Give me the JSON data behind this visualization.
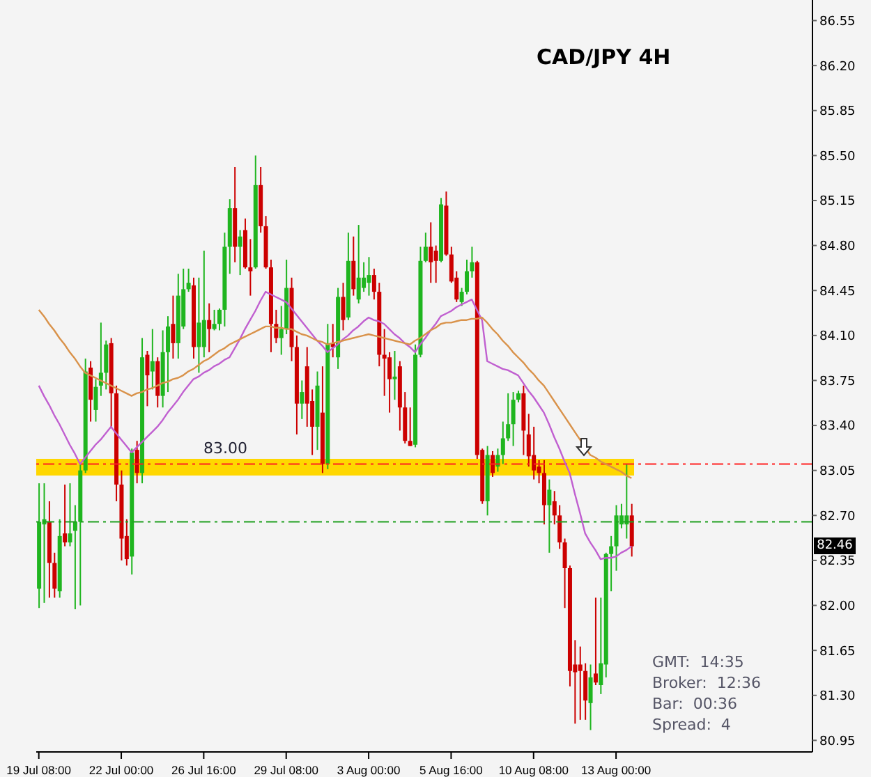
{
  "chart_data": {
    "type": "candlestick",
    "title": "CAD/JPY 4H",
    "categories": [
      "19 Jul 08:00",
      null,
      null,
      null,
      null,
      null,
      null,
      null,
      null,
      null,
      null,
      null,
      null,
      null,
      null,
      null,
      "22 Jul 00:00",
      null,
      null,
      null,
      null,
      null,
      null,
      null,
      null,
      null,
      null,
      null,
      null,
      null,
      null,
      null,
      "26 Jul 16:00",
      null,
      null,
      null,
      null,
      null,
      null,
      null,
      null,
      null,
      null,
      null,
      null,
      null,
      null,
      null,
      "29 Jul 08:00",
      null,
      null,
      null,
      null,
      null,
      null,
      null,
      null,
      null,
      null,
      null,
      null,
      null,
      null,
      null,
      "3 Aug 00:00",
      null,
      null,
      null,
      null,
      null,
      null,
      null,
      null,
      null,
      null,
      null,
      null,
      null,
      null,
      null,
      "5 Aug 16:00",
      null,
      null,
      null,
      null,
      null,
      null,
      null,
      null,
      null,
      null,
      null,
      null,
      null,
      null,
      null,
      "10 Aug 08:00",
      null,
      null,
      null,
      null,
      null,
      null,
      null,
      null,
      null,
      null,
      null,
      null,
      null,
      null,
      null,
      "13 Aug 00:00",
      null,
      null,
      null
    ],
    "ohlc": [
      [
        82.13,
        82.95,
        81.98,
        82.65
      ],
      [
        82.63,
        82.95,
        82.02,
        82.67
      ],
      [
        82.65,
        82.81,
        82.06,
        82.33
      ],
      [
        82.33,
        82.41,
        82.06,
        82.13
      ],
      [
        82.11,
        82.67,
        82.06,
        82.54
      ],
      [
        82.56,
        82.94,
        82.46,
        82.49
      ],
      [
        82.49,
        82.95,
        82.46,
        82.56
      ],
      [
        82.58,
        82.78,
        81.97,
        82.65
      ],
      [
        82.65,
        83.1,
        82.0,
        83.05
      ],
      [
        83.05,
        83.92,
        83.03,
        83.82
      ],
      [
        83.85,
        83.9,
        83.43,
        83.6
      ],
      [
        83.52,
        83.76,
        83.43,
        83.7
      ],
      [
        83.71,
        84.2,
        83.63,
        83.81
      ],
      [
        83.81,
        84.06,
        83.68,
        84.03
      ],
      [
        84.04,
        84.08,
        83.39,
        83.65
      ],
      [
        83.65,
        83.71,
        82.81,
        82.94
      ],
      [
        82.94,
        83.05,
        82.35,
        82.52
      ],
      [
        82.54,
        82.67,
        82.31,
        82.36
      ],
      [
        82.38,
        83.22,
        82.24,
        83.19
      ],
      [
        83.21,
        83.28,
        82.95,
        83.03
      ],
      [
        83.03,
        84.08,
        82.95,
        83.93
      ],
      [
        83.95,
        83.98,
        83.55,
        83.79
      ],
      [
        83.82,
        84.15,
        83.68,
        83.9
      ],
      [
        83.9,
        83.93,
        83.54,
        83.63
      ],
      [
        83.63,
        84.14,
        83.54,
        83.97
      ],
      [
        83.97,
        84.25,
        83.66,
        84.17
      ],
      [
        84.19,
        84.41,
        83.92,
        84.04
      ],
      [
        84.04,
        84.58,
        83.92,
        84.41
      ],
      [
        84.17,
        84.62,
        84.15,
        84.46
      ],
      [
        84.46,
        84.62,
        84.44,
        84.51
      ],
      [
        84.49,
        84.55,
        83.92,
        84.01
      ],
      [
        84.01,
        84.55,
        83.81,
        84.2
      ],
      [
        84.01,
        84.76,
        83.93,
        84.22
      ],
      [
        84.22,
        84.35,
        83.97,
        84.15
      ],
      [
        84.15,
        84.3,
        84.14,
        84.19
      ],
      [
        84.19,
        84.31,
        84.14,
        84.3
      ],
      [
        84.3,
        84.9,
        84.17,
        84.79
      ],
      [
        84.79,
        85.16,
        84.58,
        85.09
      ],
      [
        85.09,
        85.41,
        84.67,
        84.79
      ],
      [
        84.79,
        84.92,
        84.57,
        84.87
      ],
      [
        84.92,
        85.01,
        84.62,
        84.63
      ],
      [
        84.63,
        84.85,
        84.41,
        84.6
      ],
      [
        84.63,
        85.5,
        84.62,
        85.27
      ],
      [
        85.27,
        85.41,
        84.9,
        84.95
      ],
      [
        84.95,
        85.03,
        84.62,
        84.63
      ],
      [
        84.63,
        84.69,
        83.97,
        84.19
      ],
      [
        84.19,
        84.3,
        84.04,
        84.08
      ],
      [
        84.08,
        84.33,
        83.95,
        84.15
      ],
      [
        84.15,
        84.69,
        84.11,
        84.47
      ],
      [
        84.47,
        84.55,
        83.9,
        84.01
      ],
      [
        84.01,
        84.1,
        83.33,
        83.57
      ],
      [
        83.57,
        83.75,
        83.45,
        83.66
      ],
      [
        83.86,
        84.01,
        83.39,
        83.57
      ],
      [
        83.59,
        83.68,
        83.17,
        83.39
      ],
      [
        83.39,
        83.82,
        83.21,
        83.71
      ],
      [
        83.5,
        83.86,
        83.03,
        83.1
      ],
      [
        83.1,
        84.19,
        83.06,
        84.04
      ],
      [
        84.04,
        84.19,
        83.93,
        84.01
      ],
      [
        83.93,
        84.47,
        83.84,
        84.4
      ],
      [
        84.4,
        84.51,
        84.14,
        84.22
      ],
      [
        84.24,
        84.9,
        84.22,
        84.68
      ],
      [
        84.68,
        84.87,
        84.41,
        84.46
      ],
      [
        84.38,
        84.96,
        84.35,
        84.55
      ],
      [
        84.47,
        84.67,
        84.44,
        84.55
      ],
      [
        84.51,
        84.71,
        84.41,
        84.57
      ],
      [
        84.57,
        84.62,
        84.38,
        84.44
      ],
      [
        84.44,
        84.51,
        83.86,
        83.95
      ],
      [
        83.95,
        84.15,
        83.63,
        83.92
      ],
      [
        83.93,
        83.97,
        83.5,
        83.76
      ],
      [
        83.76,
        83.98,
        83.6,
        83.78
      ],
      [
        83.86,
        83.9,
        83.36,
        83.54
      ],
      [
        83.54,
        83.66,
        83.26,
        83.28
      ],
      [
        83.28,
        83.54,
        83.24,
        83.24
      ],
      [
        83.25,
        84.03,
        83.23,
        83.95
      ],
      [
        83.95,
        84.79,
        83.93,
        84.68
      ],
      [
        84.68,
        84.9,
        84.67,
        84.79
      ],
      [
        84.79,
        84.98,
        84.51,
        84.67
      ],
      [
        84.76,
        84.8,
        84.51,
        84.68
      ],
      [
        84.68,
        85.17,
        84.67,
        85.12
      ],
      [
        85.11,
        85.22,
        84.72,
        84.73
      ],
      [
        84.73,
        84.79,
        84.51,
        84.52
      ],
      [
        84.55,
        84.6,
        84.36,
        84.38
      ],
      [
        84.36,
        84.47,
        84.33,
        84.44
      ],
      [
        84.44,
        84.69,
        84.42,
        84.6
      ],
      [
        84.6,
        84.79,
        84.55,
        84.67
      ],
      [
        84.67,
        84.68,
        83.14,
        83.17
      ],
      [
        83.21,
        83.22,
        82.79,
        82.81
      ],
      [
        82.81,
        83.24,
        82.7,
        83.17
      ],
      [
        83.17,
        83.2,
        83.0,
        83.03
      ],
      [
        83.08,
        83.22,
        83.04,
        83.17
      ],
      [
        83.17,
        83.43,
        83.1,
        83.3
      ],
      [
        83.3,
        83.65,
        83.28,
        83.41
      ],
      [
        83.41,
        83.66,
        83.24,
        83.6
      ],
      [
        83.6,
        83.67,
        83.58,
        83.65
      ],
      [
        83.65,
        83.71,
        83.17,
        83.36
      ],
      [
        83.33,
        83.49,
        83.08,
        83.16
      ],
      [
        83.17,
        83.39,
        82.98,
        83.05
      ],
      [
        83.08,
        83.13,
        82.95,
        83.03
      ],
      [
        83.03,
        83.13,
        82.63,
        82.78
      ],
      [
        82.78,
        82.98,
        82.41,
        82.9
      ],
      [
        82.81,
        82.89,
        82.63,
        82.7
      ],
      [
        82.7,
        82.78,
        82.44,
        82.49
      ],
      [
        82.49,
        82.52,
        81.98,
        82.29
      ],
      [
        82.29,
        82.31,
        81.37,
        81.49
      ],
      [
        81.54,
        81.73,
        81.08,
        81.48
      ],
      [
        81.54,
        81.68,
        81.11,
        81.49
      ],
      [
        81.49,
        81.55,
        81.11,
        81.26
      ],
      [
        81.24,
        81.54,
        81.03,
        81.44
      ],
      [
        81.47,
        82.06,
        81.38,
        81.4
      ],
      [
        81.38,
        82.06,
        81.31,
        81.55
      ],
      [
        81.54,
        82.41,
        81.44,
        82.4
      ],
      [
        82.4,
        82.54,
        82.11,
        82.46
      ],
      [
        82.46,
        82.78,
        82.27,
        82.7
      ],
      [
        82.63,
        82.79,
        82.6,
        82.7
      ],
      [
        82.63,
        83.1,
        82.52,
        82.7
      ],
      [
        82.7,
        82.79,
        82.38,
        82.46
      ]
    ],
    "colors": [
      "#1fb51f",
      "#1fb51f",
      "#cc0000",
      "#cc0000",
      "#1fb51f",
      "#cc0000",
      "#1fb51f",
      "#1fb51f",
      "#1fb51f",
      "#1fb51f",
      "#cc0000",
      "#1fb51f",
      "#1fb51f",
      "#1fb51f",
      "#cc0000",
      "#cc0000",
      "#cc0000",
      "#cc0000",
      "#1fb51f",
      "#cc0000",
      "#1fb51f",
      "#cc0000",
      "#1fb51f",
      "#cc0000",
      "#1fb51f",
      "#1fb51f",
      "#cc0000",
      "#1fb51f",
      "#1fb51f",
      "#1fb51f",
      "#cc0000",
      "#1fb51f",
      "#1fb51f",
      "#cc0000",
      "#1fb51f",
      "#1fb51f",
      "#1fb51f",
      "#1fb51f",
      "#cc0000",
      "#1fb51f",
      "#cc0000",
      "#cc0000",
      "#1fb51f",
      "#cc0000",
      "#cc0000",
      "#cc0000",
      "#cc0000",
      "#1fb51f",
      "#1fb51f",
      "#cc0000",
      "#cc0000",
      "#1fb51f",
      "#cc0000",
      "#cc0000",
      "#1fb51f",
      "#cc0000",
      "#1fb51f",
      "#cc0000",
      "#1fb51f",
      "#cc0000",
      "#1fb51f",
      "#cc0000",
      "#1fb51f",
      "#1fb51f",
      "#1fb51f",
      "#cc0000",
      "#cc0000",
      "#cc0000",
      "#cc0000",
      "#1fb51f",
      "#cc0000",
      "#cc0000",
      "#cc0000",
      "#1fb51f",
      "#1fb51f",
      "#1fb51f",
      "#cc0000",
      "#cc0000",
      "#1fb51f",
      "#cc0000",
      "#cc0000",
      "#cc0000",
      "#1fb51f",
      "#1fb51f",
      "#1fb51f",
      "#cc0000",
      "#cc0000",
      "#1fb51f",
      "#cc0000",
      "#1fb51f",
      "#1fb51f",
      "#1fb51f",
      "#1fb51f",
      "#1fb51f",
      "#cc0000",
      "#cc0000",
      "#cc0000",
      "#cc0000",
      "#cc0000",
      "#1fb51f",
      "#cc0000",
      "#cc0000",
      "#cc0000",
      "#cc0000",
      "#cc0000",
      "#cc0000",
      "#cc0000",
      "#1fb51f",
      "#cc0000",
      "#1fb51f",
      "#1fb51f",
      "#1fb51f",
      "#1fb51f",
      "#1fb51f",
      "#1fb51f",
      "#cc0000"
    ],
    "series": [
      {
        "type": "line",
        "color": "#c05fd0",
        "values": [
          83.71,
          83.63,
          83.56,
          83.48,
          83.41,
          83.33,
          83.25,
          83.18,
          83.1,
          83.15,
          83.2,
          83.25,
          83.29,
          83.34,
          83.39,
          83.34,
          83.29,
          83.24,
          83.19,
          83.23,
          83.27,
          83.31,
          83.35,
          83.39,
          83.44,
          83.5,
          83.55,
          83.6,
          83.66,
          83.71,
          83.76,
          83.78,
          83.81,
          83.83,
          83.86,
          83.88,
          83.91,
          83.93,
          84.0,
          84.07,
          84.15,
          84.22,
          84.29,
          84.37,
          84.44,
          84.42,
          84.4,
          84.38,
          84.36,
          84.31,
          84.26,
          84.21,
          84.16,
          84.11,
          84.06,
          84.02,
          83.97,
          84.0,
          84.03,
          84.07,
          84.1,
          84.14,
          84.17,
          84.21,
          84.24,
          84.22,
          84.21,
          84.19,
          84.15,
          84.11,
          84.08,
          84.04,
          84.01,
          83.97,
          84.03,
          84.08,
          84.14,
          84.19,
          84.25,
          84.27,
          84.29,
          84.32,
          84.34,
          84.36,
          84.38,
          84.3,
          84.22,
          83.9,
          83.88,
          83.86,
          83.84,
          83.83,
          83.81,
          83.79,
          83.73,
          83.67,
          83.62,
          83.56,
          83.5,
          83.41,
          83.31,
          83.22,
          83.12,
          83.03,
          82.87,
          82.72,
          82.56,
          82.49,
          82.43,
          82.36,
          82.37,
          82.37,
          82.38,
          82.41,
          82.43,
          82.46
        ]
      },
      {
        "type": "line",
        "color": "#d9924a",
        "values": [
          84.3,
          84.25,
          84.19,
          84.14,
          84.08,
          84.03,
          83.97,
          83.92,
          83.86,
          83.81,
          83.79,
          83.77,
          83.75,
          83.73,
          83.71,
          83.69,
          83.67,
          83.65,
          83.63,
          83.65,
          83.66,
          83.68,
          83.69,
          83.71,
          83.73,
          83.74,
          83.76,
          83.77,
          83.79,
          83.82,
          83.84,
          83.87,
          83.9,
          83.92,
          83.95,
          83.98,
          84.0,
          84.03,
          84.05,
          84.07,
          84.09,
          84.11,
          84.13,
          84.15,
          84.17,
          84.17,
          84.16,
          84.16,
          84.15,
          84.15,
          84.13,
          84.11,
          84.1,
          84.08,
          84.06,
          84.05,
          84.03,
          84.04,
          84.05,
          84.06,
          84.07,
          84.08,
          84.09,
          84.1,
          84.11,
          84.1,
          84.09,
          84.08,
          84.07,
          84.06,
          84.05,
          84.04,
          84.03,
          84.06,
          84.08,
          84.11,
          84.14,
          84.16,
          84.19,
          84.2,
          84.2,
          84.21,
          84.22,
          84.22,
          84.23,
          84.23,
          84.24,
          84.2,
          84.15,
          84.11,
          84.06,
          84.02,
          83.97,
          83.93,
          83.89,
          83.84,
          83.8,
          83.75,
          83.71,
          83.65,
          83.59,
          83.53,
          83.47,
          83.41,
          83.35,
          83.29,
          83.23,
          83.17,
          83.15,
          83.12,
          83.1,
          83.08,
          83.06,
          83.04,
          83.01,
          82.99
        ]
      }
    ],
    "ylim": [
      80.86,
      86.71
    ],
    "yticks": [
      {
        "value": 80.95,
        "label": "80.95"
      },
      {
        "value": 81.3,
        "label": "81.30"
      },
      {
        "value": 81.65,
        "label": "81.65"
      },
      {
        "value": 82.0,
        "label": "82.00"
      },
      {
        "value": 82.35,
        "label": "82.35"
      },
      {
        "value": 82.7,
        "label": "82.70"
      },
      {
        "value": 83.05,
        "label": "83.05"
      },
      {
        "value": 83.4,
        "label": "83.40"
      },
      {
        "value": 83.75,
        "label": "83.75"
      },
      {
        "value": 84.1,
        "label": "84.10"
      },
      {
        "value": 84.45,
        "label": "84.45"
      },
      {
        "value": 84.8,
        "label": "84.80"
      },
      {
        "value": 85.15,
        "label": "85.15"
      },
      {
        "value": 85.5,
        "label": "85.50"
      },
      {
        "value": 85.85,
        "label": "85.85"
      },
      {
        "value": 86.2,
        "label": "86.20"
      },
      {
        "value": 86.55,
        "label": "86.55"
      }
    ],
    "ref_lines": [
      {
        "axis": "y",
        "value": 83.1,
        "color": "#ff2020",
        "line_style": "dashed"
      },
      {
        "axis": "y",
        "value": 82.65,
        "color": "#20a020",
        "line_style": "dashed"
      }
    ],
    "bands": [
      {
        "axis": "y",
        "from": 83.01,
        "to": 83.14,
        "label": "83.00",
        "color": "#ffd700"
      }
    ],
    "annotations": [
      "GMT:  14:35",
      "Broker:  12:36",
      "Bar:  00:36",
      "Spread:  4",
      "82.46"
    ],
    "grid": false
  }
}
